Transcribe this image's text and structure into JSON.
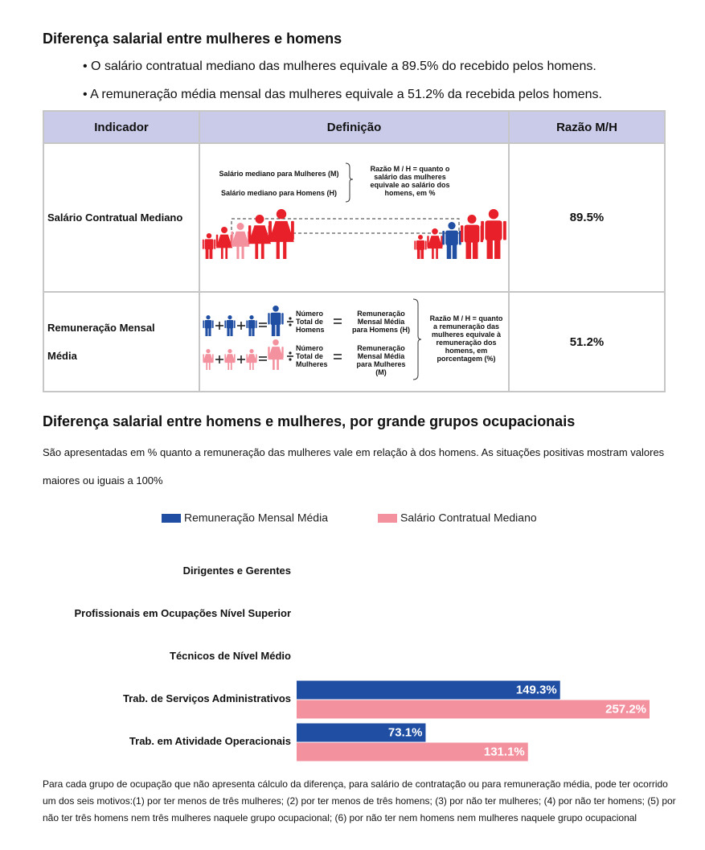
{
  "section1": {
    "title": "Diferença salarial entre mulheres e homens",
    "bullets": [
      "• O salário contratual mediano das mulheres equivale a 89.5% do recebido pelos homens.",
      "• A remuneração média mensal das mulheres equivale a 51.2% da recebida pelos homens."
    ]
  },
  "table": {
    "headers": [
      "Indicador",
      "Definição",
      "Razão M/H"
    ],
    "rows": [
      {
        "indicator": "Salário Contratual Mediano",
        "ratio": "89.5%"
      },
      {
        "indicator": "Remuneração Mensal Média",
        "ratio": "51.2%"
      }
    ],
    "diagram1": {
      "m_label": "Salário mediano para Mulheres (M)",
      "h_label": "Salário mediano para Homens (H)",
      "note": "Razão M / H = quanto o salário das mulheres equivale ao salário dos homens, em %"
    },
    "diagram2": {
      "men_count": "Número Total de Homens",
      "men_pay": "Remuneração Mensal Média para Homens (H)",
      "women_count": "Número Total de Mulheres",
      "women_pay": "Remuneração Mensal Média para Mulheres (M)",
      "note": "Razão M / H = quanto a remuneração das mulheres equivale à remuneração dos homens, em porcentagem (%)"
    }
  },
  "section2": {
    "title": "Diferença salarial entre homens e mulheres, por grande grupos ocupacionais",
    "paragraph": "São apresentadas em % quanto a remuneração das mulheres vale em relação à dos homens. As situações positivas mostram valores maiores ou iguais a 100%"
  },
  "chart_data": {
    "type": "hbar",
    "categories": [
      "Dirigentes e Gerentes",
      "Profissionais em Ocupações Nível Superior",
      "Técnicos de Nível Médio",
      "Trab. de Serviços Administrativos",
      "Trab. em Atividade Operacionais"
    ],
    "series": [
      {
        "name": "Remuneração Mensal Média",
        "color": "#1f4ea3",
        "values": [
          null,
          null,
          null,
          149.3,
          73.1
        ],
        "value_labels": [
          null,
          null,
          null,
          "149.3%",
          "73.1%"
        ]
      },
      {
        "name": "Salário Contratual Mediano",
        "color": "#f4919f",
        "values": [
          null,
          null,
          null,
          257.2,
          131.1
        ],
        "value_labels": [
          null,
          null,
          null,
          "257.2%",
          "131.1%"
        ]
      }
    ],
    "xlim": [
      0,
      200
    ]
  },
  "footnote": "Para cada grupo de ocupação que não apresenta cálculo da diferença, para salário de contratação ou para remuneração média, pode ter ocorrido um dos seis motivos:(1) por ter menos de três mulheres; (2) por ter menos de três homens; (3) por não ter mulheres; (4) por não ter homens; (5) por não ter três homens nem três mulheres naquele grupo ocupacional; (6) por não ter nem homens nem mulheres naquele grupo ocupacional"
}
